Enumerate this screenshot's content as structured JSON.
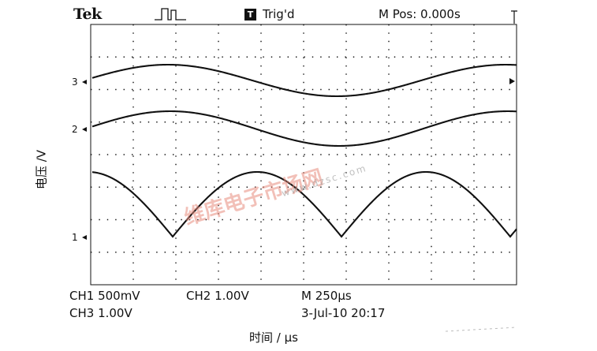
{
  "header": {
    "brand": "Tek",
    "trigger_icon_label": "T",
    "trigger_status": "Trig'd",
    "m_pos": "M Pos: 0.000s"
  },
  "channels": {
    "ch1": {
      "marker": "1",
      "scale": "CH1  500mV"
    },
    "ch2": {
      "marker": "2",
      "scale": "CH2  1.00V"
    },
    "ch3": {
      "marker": "3",
      "scale": "CH3  1.00V"
    }
  },
  "timebase": "M 250μs",
  "datetime": "3-Jul-10 20:17",
  "axes": {
    "y_label": "电压 /V",
    "x_label": "时间 / μs"
  },
  "watermark": {
    "main": "维库电子市场网",
    "sub": "www.dzsc.com"
  },
  "icons": {
    "trigger_pulse": "pulse-icon",
    "edge_arrow": "left-arrow-icon",
    "channel_marker": "right-arrow-icon"
  },
  "colors": {
    "trace": "#111111",
    "grid": "#111111",
    "watermark": "#e88c7d"
  }
}
